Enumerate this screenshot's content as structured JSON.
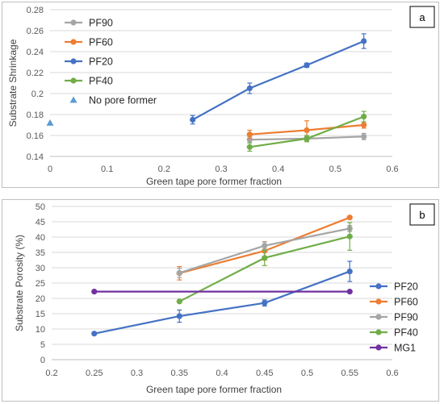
{
  "chart_data": [
    {
      "panel_label": "a",
      "type": "line",
      "xlabel": "Green tape pore former fraction",
      "ylabel": "Substrate Shrinkage",
      "xlim": [
        0,
        0.6
      ],
      "ylim": [
        0.14,
        0.28
      ],
      "xticks": [
        0,
        0.1,
        0.2,
        0.3,
        0.4,
        0.5,
        0.6
      ],
      "yticks": [
        0.14,
        0.16,
        0.18,
        0.2,
        0.22,
        0.24,
        0.26,
        0.28
      ],
      "xtick_labels": [
        "0",
        "0.1",
        "0.2",
        "0.3",
        "0.4",
        "0.5",
        "0.6"
      ],
      "ytick_labels": [
        "0.14",
        "0.16",
        "0.18",
        "0.2",
        "0.22",
        "0.24",
        "0.26",
        "0.28"
      ],
      "grid": "horizontal",
      "legend_position": "top-left",
      "series": [
        {
          "name": "PF90",
          "color": "#a5a5a5",
          "marker": "circle",
          "x": [
            0.35,
            0.45,
            0.55
          ],
          "y": [
            0.156,
            0.157,
            0.159
          ],
          "err": [
            0.003,
            0.002,
            0.003
          ]
        },
        {
          "name": "PF60",
          "color": "#ed7d31",
          "marker": "circle",
          "x": [
            0.35,
            0.45,
            0.55
          ],
          "y": [
            0.161,
            0.165,
            0.17
          ],
          "err": [
            0.004,
            0.009,
            0.003
          ]
        },
        {
          "name": "PF20",
          "color": "#4472c4",
          "marker": "circle",
          "x": [
            0.25,
            0.35,
            0.45,
            0.55
          ],
          "y": [
            0.175,
            0.205,
            0.227,
            0.25
          ],
          "err": [
            0.004,
            0.005,
            0.002,
            0.007
          ]
        },
        {
          "name": "PF40",
          "color": "#70ad47",
          "marker": "circle",
          "x": [
            0.35,
            0.45,
            0.55
          ],
          "y": [
            0.149,
            0.157,
            0.178
          ],
          "err": [
            0.004,
            0.003,
            0.005
          ]
        },
        {
          "name": "No pore former",
          "color": "#5b9bd5",
          "marker": "triangle",
          "x": [
            0
          ],
          "y": [
            0.172
          ],
          "err": [
            0
          ]
        }
      ]
    },
    {
      "panel_label": "b",
      "type": "line",
      "xlabel": "Green tape pore former fraction",
      "ylabel": "Substrate Porosity (%)",
      "xlim": [
        0.2,
        0.6
      ],
      "ylim": [
        0,
        50
      ],
      "xticks": [
        0.2,
        0.25,
        0.3,
        0.35,
        0.4,
        0.45,
        0.5,
        0.55,
        0.6
      ],
      "yticks": [
        0,
        5,
        10,
        15,
        20,
        25,
        30,
        35,
        40,
        45,
        50
      ],
      "xtick_labels": [
        "0.2",
        "0.25",
        "0.3",
        "0.35",
        "0.4",
        "0.45",
        "0.5",
        "0.55",
        "0.6"
      ],
      "ytick_labels": [
        "0",
        "5",
        "10",
        "15",
        "20",
        "25",
        "30",
        "35",
        "40",
        "45",
        "50"
      ],
      "grid": "horizontal",
      "legend_position": "right",
      "series": [
        {
          "name": "PF20",
          "color": "#4472c4",
          "marker": "circle",
          "x": [
            0.25,
            0.35,
            0.45,
            0.55
          ],
          "y": [
            8.5,
            14.2,
            18.5,
            28.8
          ],
          "err": [
            0,
            2,
            1,
            3.3
          ]
        },
        {
          "name": "PF60",
          "color": "#ed7d31",
          "marker": "circle",
          "x": [
            0.35,
            0.45,
            0.55
          ],
          "y": [
            28.2,
            35.5,
            46.4
          ],
          "err": [
            2.2,
            3,
            0
          ]
        },
        {
          "name": "PF90",
          "color": "#a5a5a5",
          "marker": "circle",
          "x": [
            0.35,
            0.45,
            0.55
          ],
          "y": [
            28.3,
            37.2,
            42.8
          ],
          "err": [
            1.5,
            1.2,
            1
          ]
        },
        {
          "name": "PF40",
          "color": "#70ad47",
          "marker": "circle",
          "x": [
            0.35,
            0.45,
            0.55
          ],
          "y": [
            19,
            33.2,
            40.2
          ],
          "err": [
            0,
            2.5,
            4.5
          ]
        },
        {
          "name": "MG1",
          "color": "#7030a0",
          "marker": "circle",
          "x": [
            0.25,
            0.55
          ],
          "y": [
            22.2,
            22.2
          ],
          "err": [
            0,
            0
          ]
        }
      ]
    }
  ]
}
